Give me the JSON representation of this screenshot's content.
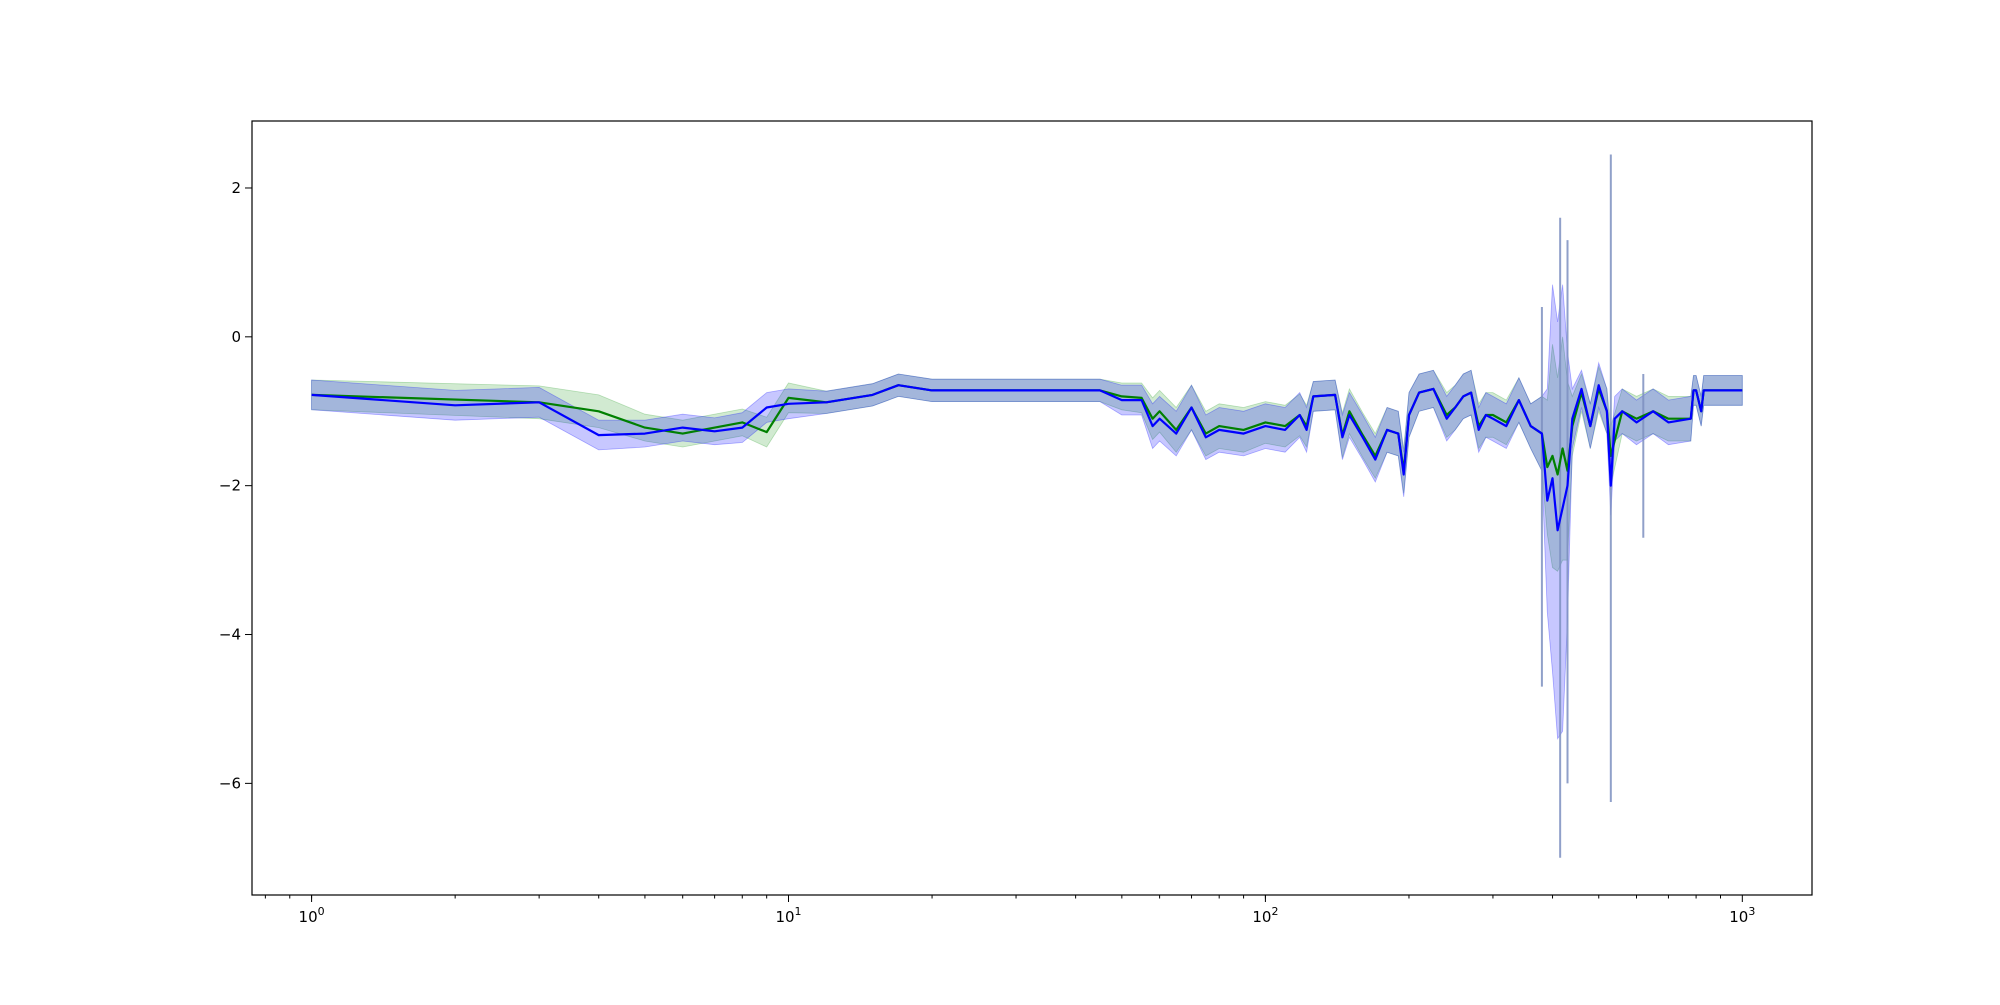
{
  "chart_data": {
    "type": "line",
    "title": "",
    "xlabel": "",
    "ylabel": "",
    "x_scale": "log",
    "xlim": [
      0.75,
      1400
    ],
    "ylim": [
      -7.5,
      2.9
    ],
    "x_major_ticks": [
      {
        "value": 1,
        "label": "10",
        "exp": "0"
      },
      {
        "value": 10,
        "label": "10",
        "exp": "1"
      },
      {
        "value": 100,
        "label": "10",
        "exp": "2"
      },
      {
        "value": 1000,
        "label": "10",
        "exp": "3"
      }
    ],
    "y_ticks": [
      {
        "value": 2,
        "label": "2"
      },
      {
        "value": 0,
        "label": "0"
      },
      {
        "value": -2,
        "label": "−2"
      },
      {
        "value": -4,
        "label": "−4"
      },
      {
        "value": -6,
        "label": "−6"
      }
    ],
    "grid": false,
    "legend": "none",
    "series": [
      {
        "color": "#008000",
        "band_color": "#2ca02c",
        "points": [
          [
            1,
            -0.78,
            0.2
          ],
          [
            3,
            -0.88,
            0.22
          ],
          [
            4,
            -1.0,
            0.22
          ],
          [
            5,
            -1.22,
            0.18
          ],
          [
            6,
            -1.3,
            0.18
          ],
          [
            8,
            -1.15,
            0.18
          ],
          [
            9,
            -1.28,
            0.2
          ],
          [
            10,
            -0.82,
            0.2
          ],
          [
            12,
            -0.88,
            0.15
          ],
          [
            15,
            -0.78,
            0.15
          ],
          [
            17,
            -0.65,
            0.15
          ],
          [
            20,
            -0.72,
            0.15
          ],
          [
            25,
            -0.72,
            0.15
          ],
          [
            45,
            -0.72,
            0.15
          ],
          [
            50,
            -0.8,
            0.18
          ],
          [
            55,
            -0.82,
            0.2
          ],
          [
            58,
            -1.1,
            0.28
          ],
          [
            60,
            -1.0,
            0.28
          ],
          [
            65,
            -1.25,
            0.3
          ],
          [
            70,
            -0.95,
            0.3
          ],
          [
            75,
            -1.3,
            0.3
          ],
          [
            80,
            -1.2,
            0.3
          ],
          [
            90,
            -1.25,
            0.3
          ],
          [
            100,
            -1.15,
            0.28
          ],
          [
            110,
            -1.2,
            0.28
          ],
          [
            118,
            -1.05,
            0.28
          ],
          [
            122,
            -1.2,
            0.28
          ],
          [
            126,
            -0.8,
            0.2
          ],
          [
            140,
            -0.78,
            0.2
          ],
          [
            145,
            -1.32,
            0.3
          ],
          [
            150,
            -1.0,
            0.3
          ],
          [
            160,
            -1.32,
            0.3
          ],
          [
            170,
            -1.6,
            0.3
          ],
          [
            180,
            -1.25,
            0.3
          ],
          [
            190,
            -1.3,
            0.3
          ],
          [
            195,
            -1.8,
            0.3
          ],
          [
            200,
            -1.05,
            0.3
          ],
          [
            210,
            -0.75,
            0.25
          ],
          [
            225,
            -0.7,
            0.25
          ],
          [
            240,
            -1.05,
            0.3
          ],
          [
            250,
            -0.95,
            0.3
          ],
          [
            260,
            -0.8,
            0.3
          ],
          [
            270,
            -0.75,
            0.3
          ],
          [
            280,
            -1.2,
            0.3
          ],
          [
            290,
            -1.05,
            0.3
          ],
          [
            300,
            -1.05,
            0.3
          ],
          [
            320,
            -1.15,
            0.3
          ],
          [
            340,
            -0.85,
            0.3
          ],
          [
            360,
            -1.2,
            0.3
          ],
          [
            380,
            -1.3,
            0.5
          ],
          [
            390,
            -1.75,
            0.9
          ],
          [
            400,
            -1.6,
            1.5
          ],
          [
            410,
            -1.85,
            1.3
          ],
          [
            420,
            -1.5,
            1.5
          ],
          [
            430,
            -1.8,
            1.2
          ],
          [
            440,
            -1.2,
            0.4
          ],
          [
            460,
            -0.75,
            0.25
          ],
          [
            480,
            -1.2,
            0.3
          ],
          [
            500,
            -0.7,
            0.3
          ],
          [
            520,
            -1.0,
            0.3
          ],
          [
            530,
            -1.6,
            0.4
          ],
          [
            560,
            -1.0,
            0.3
          ],
          [
            600,
            -1.1,
            0.3
          ],
          [
            650,
            -1.0,
            0.3
          ],
          [
            700,
            -1.1,
            0.3
          ],
          [
            780,
            -1.1,
            0.3
          ],
          [
            790,
            -0.72,
            0.2
          ],
          [
            800,
            -0.72,
            0.2
          ],
          [
            820,
            -1.0,
            0.2
          ],
          [
            830,
            -0.72,
            0.2
          ],
          [
            1000,
            -0.72,
            0.2
          ]
        ]
      },
      {
        "color": "#0000ff",
        "band_color": "#0000ff",
        "points": [
          [
            1,
            -0.78,
            0.2
          ],
          [
            2,
            -0.92,
            0.2
          ],
          [
            3,
            -0.88,
            0.2
          ],
          [
            4,
            -1.32,
            0.2
          ],
          [
            5,
            -1.3,
            0.18
          ],
          [
            6,
            -1.22,
            0.18
          ],
          [
            7,
            -1.27,
            0.18
          ],
          [
            8,
            -1.22,
            0.2
          ],
          [
            9,
            -0.95,
            0.2
          ],
          [
            10,
            -0.9,
            0.2
          ],
          [
            12,
            -0.88,
            0.15
          ],
          [
            15,
            -0.78,
            0.15
          ],
          [
            17,
            -0.65,
            0.15
          ],
          [
            20,
            -0.72,
            0.15
          ],
          [
            25,
            -0.72,
            0.15
          ],
          [
            45,
            -0.72,
            0.15
          ],
          [
            50,
            -0.85,
            0.2
          ],
          [
            55,
            -0.85,
            0.2
          ],
          [
            58,
            -1.2,
            0.3
          ],
          [
            60,
            -1.1,
            0.3
          ],
          [
            65,
            -1.3,
            0.3
          ],
          [
            70,
            -0.95,
            0.3
          ],
          [
            75,
            -1.35,
            0.3
          ],
          [
            80,
            -1.25,
            0.3
          ],
          [
            90,
            -1.3,
            0.3
          ],
          [
            100,
            -1.2,
            0.3
          ],
          [
            110,
            -1.25,
            0.3
          ],
          [
            118,
            -1.05,
            0.3
          ],
          [
            122,
            -1.25,
            0.3
          ],
          [
            126,
            -0.8,
            0.2
          ],
          [
            140,
            -0.78,
            0.2
          ],
          [
            145,
            -1.35,
            0.3
          ],
          [
            150,
            -1.05,
            0.3
          ],
          [
            160,
            -1.35,
            0.3
          ],
          [
            170,
            -1.65,
            0.3
          ],
          [
            180,
            -1.25,
            0.3
          ],
          [
            190,
            -1.3,
            0.3
          ],
          [
            195,
            -1.85,
            0.3
          ],
          [
            200,
            -1.05,
            0.3
          ],
          [
            210,
            -0.75,
            0.25
          ],
          [
            225,
            -0.7,
            0.25
          ],
          [
            240,
            -1.1,
            0.3
          ],
          [
            250,
            -0.95,
            0.3
          ],
          [
            260,
            -0.8,
            0.3
          ],
          [
            270,
            -0.75,
            0.3
          ],
          [
            280,
            -1.25,
            0.3
          ],
          [
            290,
            -1.05,
            0.3
          ],
          [
            300,
            -1.1,
            0.3
          ],
          [
            320,
            -1.2,
            0.3
          ],
          [
            340,
            -0.85,
            0.3
          ],
          [
            360,
            -1.2,
            0.3
          ],
          [
            380,
            -1.3,
            0.5
          ],
          [
            390,
            -2.2,
            1.5
          ],
          [
            400,
            -1.9,
            2.6
          ],
          [
            410,
            -2.6,
            2.8
          ],
          [
            420,
            -2.3,
            3.0
          ],
          [
            430,
            -2.0,
            1.8
          ],
          [
            440,
            -1.1,
            0.4
          ],
          [
            460,
            -0.7,
            0.25
          ],
          [
            480,
            -1.2,
            0.3
          ],
          [
            500,
            -0.65,
            0.3
          ],
          [
            520,
            -1.0,
            0.3
          ],
          [
            530,
            -2.0,
            0.4
          ],
          [
            540,
            -1.1,
            0.3
          ],
          [
            560,
            -1.0,
            0.3
          ],
          [
            600,
            -1.15,
            0.3
          ],
          [
            650,
            -1.0,
            0.3
          ],
          [
            700,
            -1.15,
            0.3
          ],
          [
            780,
            -1.1,
            0.3
          ],
          [
            790,
            -0.72,
            0.2
          ],
          [
            800,
            -0.72,
            0.2
          ],
          [
            820,
            -1.0,
            0.2
          ],
          [
            830,
            -0.72,
            0.2
          ],
          [
            1000,
            -0.72,
            0.2
          ]
        ]
      }
    ],
    "spikes": [
      {
        "x": 530,
        "low": -6.25,
        "high": 2.45
      },
      {
        "x": 415,
        "low": -7.0,
        "high": 1.6
      },
      {
        "x": 380,
        "low": -4.7,
        "high": 0.4
      },
      {
        "x": 430,
        "low": -6.0,
        "high": 1.3
      },
      {
        "x": 620,
        "low": -2.7,
        "high": -0.5
      }
    ]
  }
}
